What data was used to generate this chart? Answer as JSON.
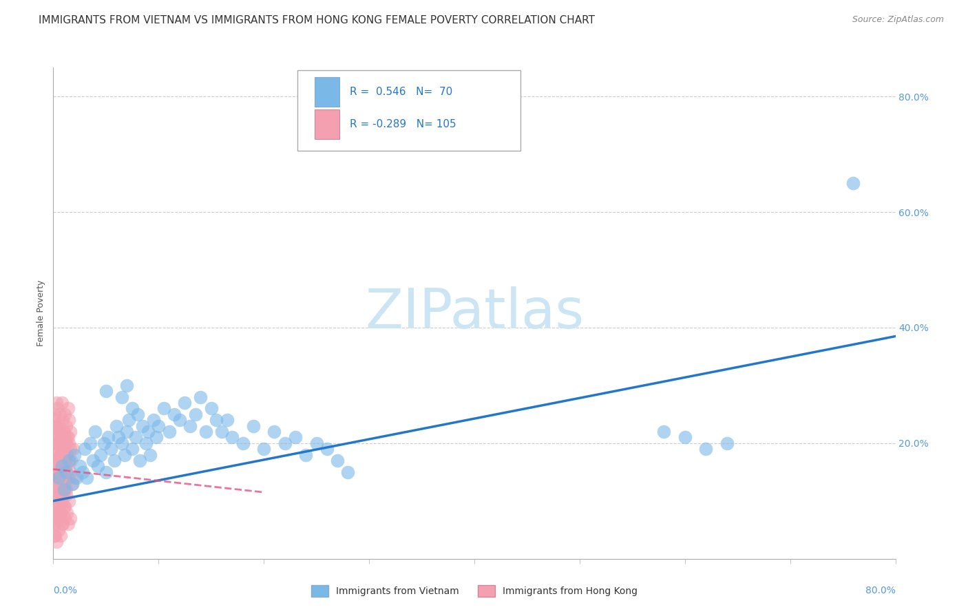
{
  "title": "IMMIGRANTS FROM VIETNAM VS IMMIGRANTS FROM HONG KONG FEMALE POVERTY CORRELATION CHART",
  "source": "Source: ZipAtlas.com",
  "ylabel": "Female Poverty",
  "xlim": [
    0.0,
    0.8
  ],
  "ylim": [
    0.0,
    0.85
  ],
  "yticks": [
    0.0,
    0.2,
    0.4,
    0.6,
    0.8
  ],
  "ytick_labels": [
    "",
    "20.0%",
    "40.0%",
    "60.0%",
    "80.0%"
  ],
  "background_color": "#ffffff",
  "watermark_text": "ZIPatlas",
  "watermark_color": "#cce5f5",
  "scatter_vietnam_color": "#7ab8e8",
  "scatter_hongkong_color": "#f4a0b0",
  "line_vietnam_color": "#2277cc",
  "line_hongkong_color": "#e85080",
  "title_fontsize": 11,
  "axis_label_fontsize": 9,
  "tick_fontsize": 10,
  "vietnam_scatter": [
    [
      0.005,
      0.14
    ],
    [
      0.008,
      0.16
    ],
    [
      0.01,
      0.12
    ],
    [
      0.012,
      0.15
    ],
    [
      0.015,
      0.17
    ],
    [
      0.018,
      0.13
    ],
    [
      0.02,
      0.18
    ],
    [
      0.022,
      0.14
    ],
    [
      0.025,
      0.16
    ],
    [
      0.028,
      0.15
    ],
    [
      0.03,
      0.19
    ],
    [
      0.032,
      0.14
    ],
    [
      0.035,
      0.2
    ],
    [
      0.038,
      0.17
    ],
    [
      0.04,
      0.22
    ],
    [
      0.042,
      0.16
    ],
    [
      0.045,
      0.18
    ],
    [
      0.048,
      0.2
    ],
    [
      0.05,
      0.15
    ],
    [
      0.052,
      0.21
    ],
    [
      0.055,
      0.19
    ],
    [
      0.058,
      0.17
    ],
    [
      0.06,
      0.23
    ],
    [
      0.062,
      0.21
    ],
    [
      0.065,
      0.2
    ],
    [
      0.068,
      0.18
    ],
    [
      0.07,
      0.22
    ],
    [
      0.072,
      0.24
    ],
    [
      0.075,
      0.19
    ],
    [
      0.078,
      0.21
    ],
    [
      0.08,
      0.25
    ],
    [
      0.082,
      0.17
    ],
    [
      0.085,
      0.23
    ],
    [
      0.088,
      0.2
    ],
    [
      0.09,
      0.22
    ],
    [
      0.092,
      0.18
    ],
    [
      0.095,
      0.24
    ],
    [
      0.098,
      0.21
    ],
    [
      0.1,
      0.23
    ],
    [
      0.105,
      0.26
    ],
    [
      0.11,
      0.22
    ],
    [
      0.115,
      0.25
    ],
    [
      0.12,
      0.24
    ],
    [
      0.125,
      0.27
    ],
    [
      0.13,
      0.23
    ],
    [
      0.135,
      0.25
    ],
    [
      0.14,
      0.28
    ],
    [
      0.145,
      0.22
    ],
    [
      0.15,
      0.26
    ],
    [
      0.155,
      0.24
    ],
    [
      0.05,
      0.29
    ],
    [
      0.065,
      0.28
    ],
    [
      0.07,
      0.3
    ],
    [
      0.075,
      0.26
    ],
    [
      0.16,
      0.22
    ],
    [
      0.165,
      0.24
    ],
    [
      0.17,
      0.21
    ],
    [
      0.18,
      0.2
    ],
    [
      0.19,
      0.23
    ],
    [
      0.2,
      0.19
    ],
    [
      0.21,
      0.22
    ],
    [
      0.22,
      0.2
    ],
    [
      0.23,
      0.21
    ],
    [
      0.24,
      0.18
    ],
    [
      0.25,
      0.2
    ],
    [
      0.26,
      0.19
    ],
    [
      0.27,
      0.17
    ],
    [
      0.28,
      0.15
    ],
    [
      0.58,
      0.22
    ],
    [
      0.6,
      0.21
    ],
    [
      0.62,
      0.19
    ],
    [
      0.64,
      0.2
    ],
    [
      0.76,
      0.65
    ]
  ],
  "hongkong_scatter": [
    [
      0.001,
      0.15
    ],
    [
      0.002,
      0.18
    ],
    [
      0.003,
      0.12
    ],
    [
      0.004,
      0.2
    ],
    [
      0.005,
      0.16
    ],
    [
      0.006,
      0.22
    ],
    [
      0.007,
      0.14
    ],
    [
      0.008,
      0.19
    ],
    [
      0.009,
      0.17
    ],
    [
      0.01,
      0.13
    ],
    [
      0.011,
      0.21
    ],
    [
      0.012,
      0.16
    ],
    [
      0.013,
      0.18
    ],
    [
      0.014,
      0.14
    ],
    [
      0.015,
      0.2
    ],
    [
      0.016,
      0.15
    ],
    [
      0.017,
      0.17
    ],
    [
      0.018,
      0.13
    ],
    [
      0.019,
      0.19
    ],
    [
      0.02,
      0.14
    ],
    [
      0.001,
      0.1
    ],
    [
      0.002,
      0.08
    ],
    [
      0.003,
      0.11
    ],
    [
      0.004,
      0.09
    ],
    [
      0.005,
      0.07
    ],
    [
      0.006,
      0.12
    ],
    [
      0.007,
      0.08
    ],
    [
      0.008,
      0.1
    ],
    [
      0.009,
      0.06
    ],
    [
      0.01,
      0.09
    ],
    [
      0.011,
      0.07
    ],
    [
      0.012,
      0.11
    ],
    [
      0.013,
      0.08
    ],
    [
      0.014,
      0.06
    ],
    [
      0.015,
      0.1
    ],
    [
      0.016,
      0.07
    ],
    [
      0.001,
      0.22
    ],
    [
      0.002,
      0.24
    ],
    [
      0.003,
      0.2
    ],
    [
      0.004,
      0.26
    ],
    [
      0.005,
      0.23
    ],
    [
      0.006,
      0.25
    ],
    [
      0.007,
      0.21
    ],
    [
      0.008,
      0.27
    ],
    [
      0.009,
      0.24
    ],
    [
      0.01,
      0.22
    ],
    [
      0.011,
      0.25
    ],
    [
      0.012,
      0.23
    ],
    [
      0.013,
      0.21
    ],
    [
      0.014,
      0.26
    ],
    [
      0.015,
      0.24
    ],
    [
      0.016,
      0.22
    ],
    [
      0.001,
      0.14
    ],
    [
      0.002,
      0.16
    ],
    [
      0.003,
      0.13
    ],
    [
      0.004,
      0.17
    ],
    [
      0.005,
      0.15
    ],
    [
      0.006,
      0.18
    ],
    [
      0.007,
      0.13
    ],
    [
      0.008,
      0.16
    ],
    [
      0.009,
      0.14
    ],
    [
      0.01,
      0.17
    ],
    [
      0.011,
      0.12
    ],
    [
      0.012,
      0.15
    ],
    [
      0.001,
      0.04
    ],
    [
      0.002,
      0.06
    ],
    [
      0.003,
      0.03
    ],
    [
      0.004,
      0.07
    ],
    [
      0.005,
      0.05
    ],
    [
      0.006,
      0.08
    ],
    [
      0.007,
      0.04
    ],
    [
      0.008,
      0.06
    ],
    [
      0.001,
      0.19
    ],
    [
      0.002,
      0.21
    ],
    [
      0.003,
      0.17
    ],
    [
      0.004,
      0.23
    ],
    [
      0.005,
      0.2
    ],
    [
      0.006,
      0.22
    ],
    [
      0.007,
      0.18
    ],
    [
      0.008,
      0.21
    ],
    [
      0.009,
      0.19
    ],
    [
      0.01,
      0.22
    ],
    [
      0.011,
      0.16
    ],
    [
      0.012,
      0.2
    ],
    [
      0.013,
      0.18
    ],
    [
      0.014,
      0.21
    ],
    [
      0.015,
      0.17
    ],
    [
      0.016,
      0.19
    ],
    [
      0.001,
      0.11
    ],
    [
      0.002,
      0.13
    ],
    [
      0.003,
      0.09
    ],
    [
      0.004,
      0.14
    ],
    [
      0.005,
      0.12
    ],
    [
      0.006,
      0.15
    ],
    [
      0.007,
      0.1
    ],
    [
      0.008,
      0.13
    ],
    [
      0.009,
      0.11
    ],
    [
      0.01,
      0.14
    ],
    [
      0.011,
      0.09
    ],
    [
      0.012,
      0.12
    ],
    [
      0.001,
      0.25
    ],
    [
      0.002,
      0.23
    ],
    [
      0.003,
      0.27
    ],
    [
      0.001,
      0.06
    ],
    [
      0.002,
      0.04
    ],
    [
      0.003,
      0.08
    ]
  ],
  "viet_line_x0": 0.0,
  "viet_line_y0": 0.1,
  "viet_line_x1": 0.8,
  "viet_line_y1": 0.385,
  "hk_line_x0": 0.0,
  "hk_line_y0": 0.155,
  "hk_line_x1": 0.2,
  "hk_line_y1": 0.115
}
